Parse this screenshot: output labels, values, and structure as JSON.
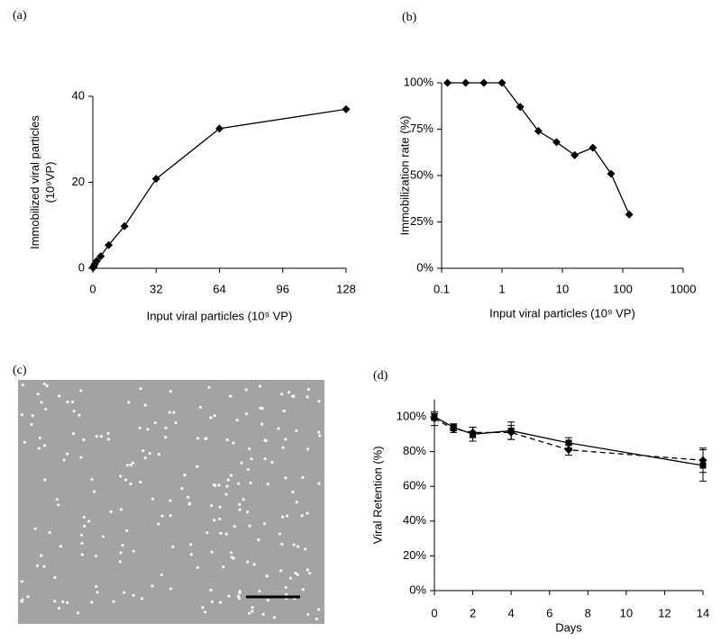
{
  "chart_data": [
    {
      "type": "line",
      "label": "(a)",
      "y_label": [
        "Immobilized viral particles",
        "(10⁹VP)"
      ],
      "x_label": "Input viral particles (10⁹ VP)",
      "x": [
        0.125,
        0.25,
        0.5,
        1,
        2,
        4,
        8,
        16,
        32,
        64,
        128
      ],
      "series": [
        {
          "color": "#000000",
          "marker": "diamond",
          "values": [
            0.125,
            0.25,
            0.5,
            1,
            1.7,
            2.8,
            5.4,
            9.8,
            20.8,
            32.5,
            37
          ]
        }
      ],
      "xlim": [
        0,
        128
      ],
      "xticks": [
        0,
        32,
        64,
        96,
        128
      ],
      "ylim": [
        0,
        40
      ],
      "yticks": [
        0,
        20,
        40
      ]
    },
    {
      "type": "line",
      "label": "(b)",
      "y_label": [
        "Immobilization rate (%)"
      ],
      "x_label": "Input viral particles (10⁹ VP)",
      "x_log": true,
      "x": [
        0.125,
        0.25,
        0.5,
        1,
        2,
        4,
        8,
        16,
        32,
        64,
        128
      ],
      "series": [
        {
          "color": "#000000",
          "marker": "diamond",
          "values": [
            100,
            100,
            100,
            100,
            87,
            74,
            68,
            61,
            65,
            51,
            29
          ]
        }
      ],
      "xlim": [
        0.1,
        1000
      ],
      "xticks": [
        0.1,
        1,
        10,
        100,
        1000
      ],
      "ylim": [
        0,
        100
      ],
      "yticks": [
        {
          "value": 0,
          "label": "0%"
        },
        {
          "value": 25,
          "label": "25%"
        },
        {
          "value": 50,
          "label": "50%"
        },
        {
          "value": 75,
          "label": "75%"
        },
        {
          "value": 100,
          "label": "100%"
        }
      ]
    },
    {
      "type": "line",
      "label": "(d)",
      "y_label": [
        "Viral Retention (%)"
      ],
      "x_label": "Days",
      "x": [
        0,
        1,
        2,
        4,
        7,
        14
      ],
      "series": [
        {
          "color": "#000000",
          "marker": "square",
          "dash": false,
          "values": [
            100,
            94,
            90,
            92,
            85,
            72
          ],
          "errors": [
            2,
            2,
            4,
            5,
            3,
            9
          ]
        },
        {
          "color": "#000000",
          "marker": "diamond",
          "dash": true,
          "values": [
            99,
            93,
            91,
            91,
            81,
            75
          ],
          "errors": [
            4,
            2,
            3,
            4,
            3,
            7
          ]
        }
      ],
      "xlim": [
        0,
        14
      ],
      "xticks": [
        0,
        2,
        4,
        6,
        8,
        10,
        12,
        14
      ],
      "ylim": [
        0,
        110
      ],
      "yticks": [
        {
          "value": 0,
          "label": "0%"
        },
        {
          "value": 20,
          "label": "20%"
        },
        {
          "value": 40,
          "label": "40%"
        },
        {
          "value": 60,
          "label": "60%"
        },
        {
          "value": 80,
          "label": "80%"
        },
        {
          "value": 100,
          "label": "100%"
        }
      ]
    }
  ],
  "image_panel": {
    "label": "(c)"
  }
}
